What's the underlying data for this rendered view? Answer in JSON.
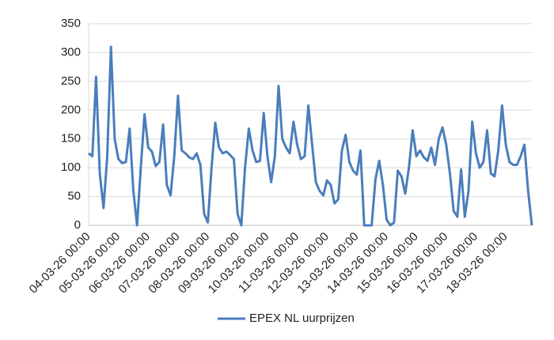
{
  "chart_data": {
    "type": "line",
    "categories": [
      "04-03-26 00:00",
      null,
      null,
      null,
      null,
      null,
      null,
      null,
      "05-03-26 00:00",
      null,
      null,
      null,
      null,
      null,
      null,
      null,
      "06-03-26 00:00",
      null,
      null,
      null,
      null,
      null,
      null,
      null,
      "07-03-26 00:00",
      null,
      null,
      null,
      null,
      null,
      null,
      null,
      "08-03-26 00:00",
      null,
      null,
      null,
      null,
      null,
      null,
      null,
      "09-03-26 00:00",
      null,
      null,
      null,
      null,
      null,
      null,
      null,
      "10-03-26 00:00",
      null,
      null,
      null,
      null,
      null,
      null,
      null,
      "11-03-26 00:00",
      null,
      null,
      null,
      null,
      null,
      null,
      null,
      "12-03-26 00:00",
      null,
      null,
      null,
      null,
      null,
      null,
      null,
      "13-03-26 00:00",
      null,
      null,
      null,
      null,
      null,
      null,
      null,
      "14-03-26 00:00",
      null,
      null,
      null,
      null,
      null,
      null,
      null,
      "15-03-26 00:00",
      null,
      null,
      null,
      null,
      null,
      null,
      null,
      "16-03-26 00:00",
      null,
      null,
      null,
      null,
      null,
      null,
      null,
      "17-03-26 00:00",
      null,
      null,
      null,
      null,
      null,
      null,
      null,
      "18-03-26 00:00",
      null,
      null,
      null,
      null,
      null,
      null,
      null
    ],
    "series": [
      {
        "name": "EPEX NL uurprijzen",
        "color": "#4a7ebb",
        "values": [
          125,
          120,
          258,
          90,
          30,
          120,
          310,
          150,
          115,
          108,
          110,
          168,
          60,
          0,
          100,
          193,
          135,
          128,
          103,
          110,
          175,
          70,
          52,
          120,
          225,
          130,
          125,
          118,
          115,
          125,
          105,
          20,
          5,
          100,
          178,
          135,
          125,
          128,
          122,
          115,
          20,
          0,
          100,
          168,
          130,
          110,
          112,
          195,
          120,
          75,
          120,
          242,
          150,
          135,
          125,
          180,
          140,
          115,
          120,
          208,
          140,
          75,
          60,
          52,
          78,
          70,
          38,
          45,
          130,
          157,
          110,
          95,
          88,
          130,
          0,
          0,
          0,
          80,
          112,
          70,
          10,
          0,
          5,
          95,
          85,
          55,
          100,
          165,
          120,
          130,
          118,
          112,
          135,
          105,
          150,
          170,
          140,
          90,
          25,
          15,
          97,
          15,
          60,
          180,
          125,
          100,
          110,
          165,
          90,
          85,
          130,
          208,
          140,
          110,
          105,
          105,
          120,
          140,
          60,
          0
        ]
      }
    ],
    "ylim": [
      0,
      350
    ],
    "yticks": [
      0,
      50,
      100,
      150,
      200,
      250,
      300,
      350
    ],
    "grid": true,
    "legend": "bottom"
  }
}
